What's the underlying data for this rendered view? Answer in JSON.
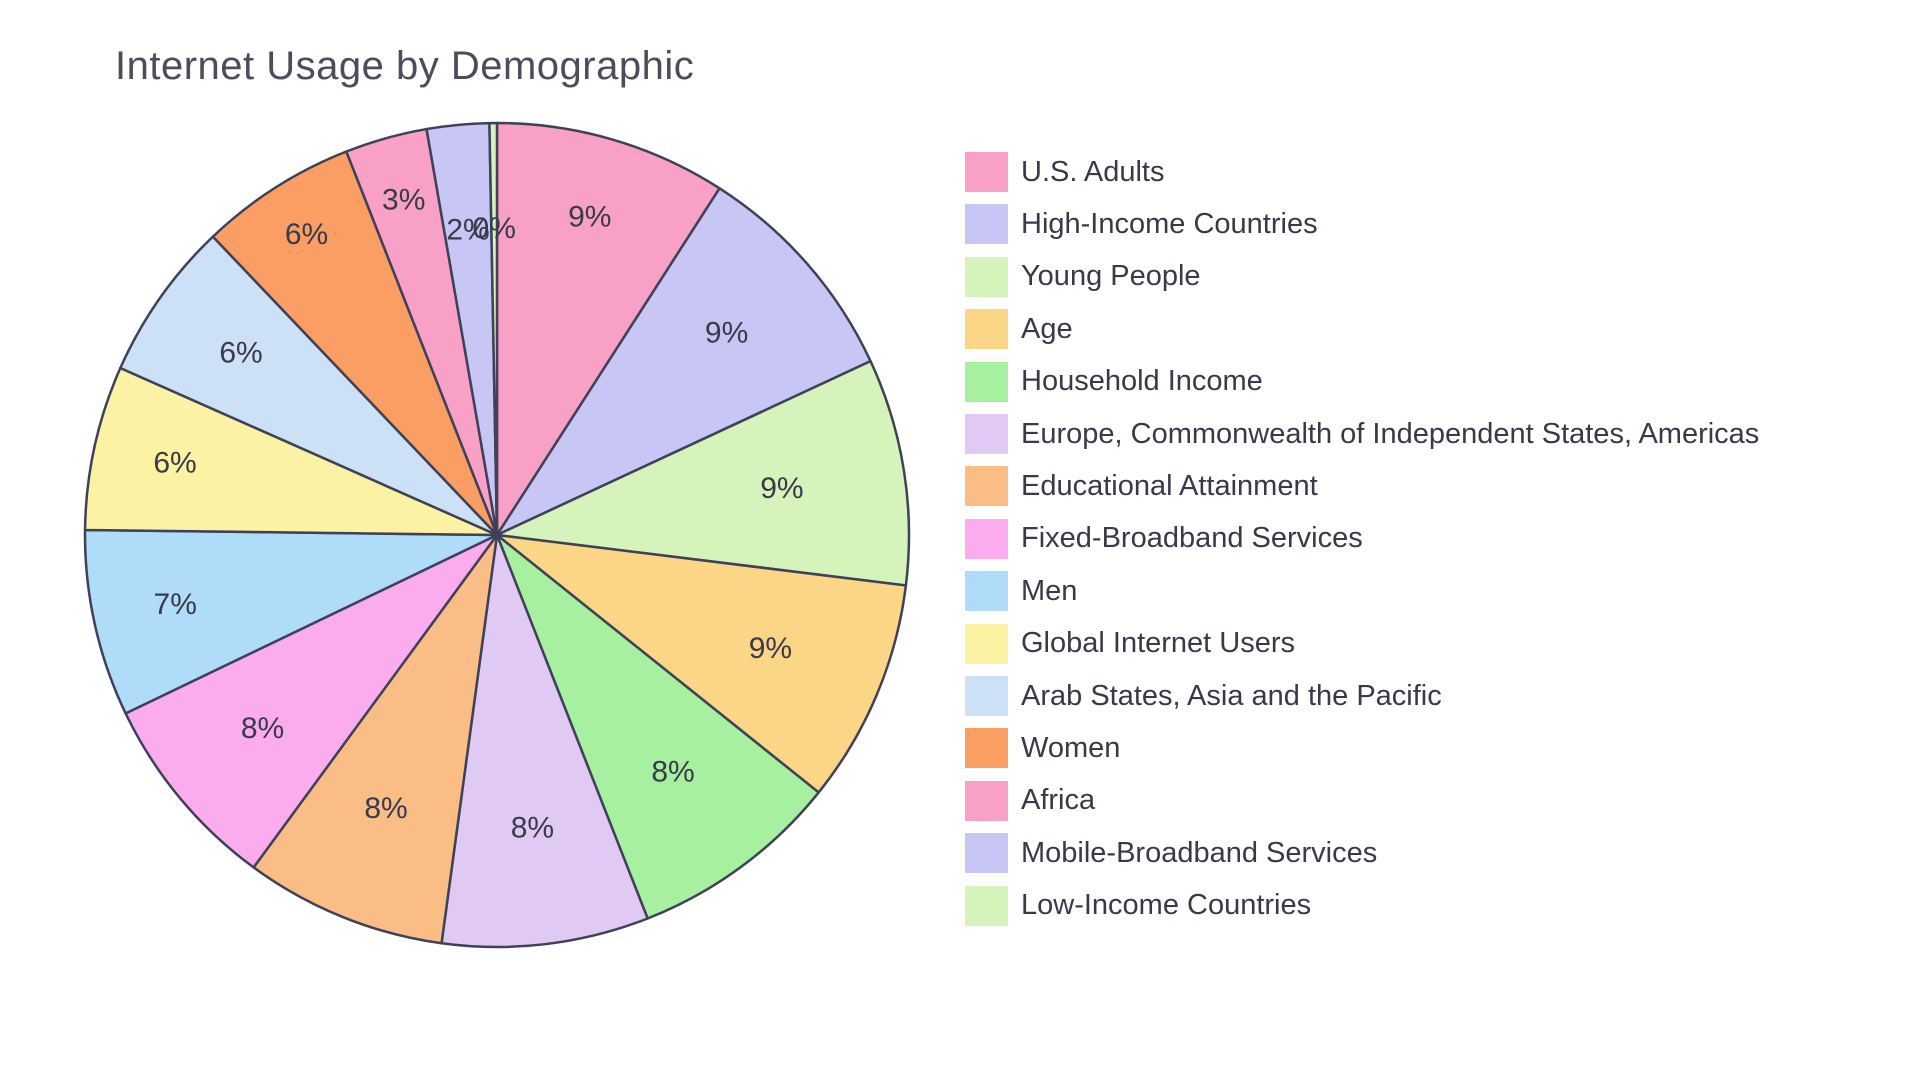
{
  "title": "Internet Usage by Demographic",
  "chart_data": {
    "type": "pie",
    "title": "Internet Usage by Demographic",
    "legend_position": "right",
    "direction": "clockwise",
    "start_angle_deg": 0,
    "stroke_color": "#3e4157",
    "label_color": "#3a3a4b",
    "slices": [
      {
        "label": "U.S. Adults",
        "pct_label": "9%",
        "value": 93,
        "color": "#F9A0C6"
      },
      {
        "label": "High-Income Countries",
        "pct_label": "9%",
        "value": 92,
        "color": "#C7C6F4"
      },
      {
        "label": "Young People",
        "pct_label": "9%",
        "value": 91,
        "color": "#D5F3BA"
      },
      {
        "label": "Age",
        "pct_label": "9%",
        "value": 90,
        "color": "#FBD687"
      },
      {
        "label": "Household Income",
        "pct_label": "8%",
        "value": 85,
        "color": "#A7F0A0"
      },
      {
        "label": "Europe, Commonwealth of Independent States, Americas",
        "pct_label": "8%",
        "value": 83,
        "color": "#E0C9F3"
      },
      {
        "label": "Educational Attainment",
        "pct_label": "8%",
        "value": 81,
        "color": "#FBBD86"
      },
      {
        "label": "Fixed-Broadband Services",
        "pct_label": "8%",
        "value": 80,
        "color": "#FAACEF"
      },
      {
        "label": "Men",
        "pct_label": "7%",
        "value": 75,
        "color": "#AFDCF8"
      },
      {
        "label": "Global Internet Users",
        "pct_label": "6%",
        "value": 66,
        "color": "#FBF2A3"
      },
      {
        "label": "Arab States, Asia and the Pacific",
        "pct_label": "6%",
        "value": 64,
        "color": "#CCE0F6"
      },
      {
        "label": "Women",
        "pct_label": "6%",
        "value": 63,
        "color": "#FB9E64"
      },
      {
        "label": "Africa",
        "pct_label": "3%",
        "value": 33,
        "color": "#F9A0C6"
      },
      {
        "label": "Mobile-Broadband Services",
        "pct_label": "2%",
        "value": 25,
        "color": "#C7C6F4"
      },
      {
        "label": "Low-Income Countries",
        "pct_label": "0%",
        "value": 3,
        "color": "#D5F3BA"
      }
    ]
  }
}
